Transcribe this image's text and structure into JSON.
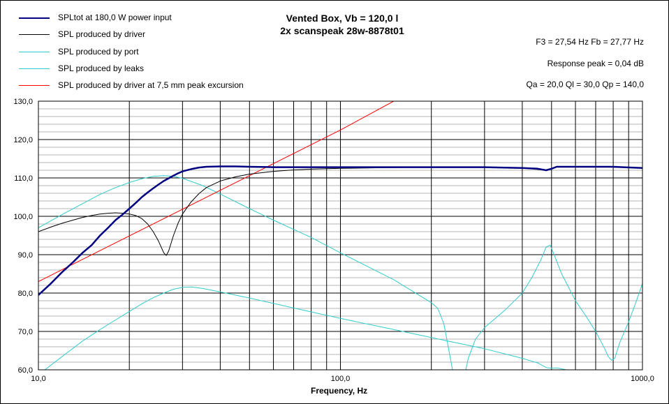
{
  "chart_data": {
    "type": "line",
    "title": "Vented Box, Vb = 120,0 l",
    "subtitle": "2x scanspeak 28w-8878t01",
    "xlabel": "Frequency, Hz",
    "ylabel": "",
    "x_scale": "log",
    "xlim": [
      10,
      1000
    ],
    "ylim": [
      60,
      130
    ],
    "x_tick_labels": [
      "10,0",
      "100,0",
      "1000,0"
    ],
    "y_tick_labels": [
      "60,0",
      "70,0",
      "80,0",
      "90,0",
      "100,0",
      "110,0",
      "120,0",
      "130,0"
    ],
    "y_ticks": [
      60,
      70,
      80,
      90,
      100,
      110,
      120,
      130
    ],
    "grid": true,
    "legend_position": "top-left",
    "annotations": [
      "F3 = 27,54  Hz   Fb = 27,77  Hz",
      "Response peak = 0,04 dB",
      "Qa = 20,0   Ql = 30,0   Qp = 140,0"
    ],
    "series": [
      {
        "name": "SPLtot at 180,0 W power input",
        "color": "#000080",
        "points": [
          [
            10,
            79.5
          ],
          [
            11,
            82.5
          ],
          [
            12,
            85.5
          ],
          [
            13,
            88
          ],
          [
            14,
            90.5
          ],
          [
            15,
            92.5
          ],
          [
            16,
            95
          ],
          [
            17,
            97
          ],
          [
            18,
            99
          ],
          [
            19,
            100.5
          ],
          [
            20,
            102
          ],
          [
            21,
            103.5
          ],
          [
            22,
            105
          ],
          [
            23,
            106.2
          ],
          [
            24,
            107.3
          ],
          [
            25,
            108.3
          ],
          [
            26,
            109.2
          ],
          [
            27,
            109.9
          ],
          [
            28,
            110.6
          ],
          [
            29,
            111.2
          ],
          [
            30,
            111.7
          ],
          [
            32,
            112.3
          ],
          [
            34,
            112.7
          ],
          [
            36,
            112.9
          ],
          [
            40,
            113
          ],
          [
            45,
            113
          ],
          [
            50,
            112.9
          ],
          [
            60,
            112.8
          ],
          [
            80,
            112.8
          ],
          [
            100,
            112.8
          ],
          [
            200,
            112.8
          ],
          [
            300,
            112.8
          ],
          [
            400,
            112.6
          ],
          [
            450,
            112.4
          ],
          [
            480,
            112
          ],
          [
            500,
            112.4
          ],
          [
            520,
            112.9
          ],
          [
            600,
            112.9
          ],
          [
            800,
            112.9
          ],
          [
            1000,
            112.6
          ]
        ]
      },
      {
        "name": "SPL produced by driver",
        "color": "#000000",
        "points": [
          [
            10,
            96
          ],
          [
            11,
            97.2
          ],
          [
            12,
            98.2
          ],
          [
            13,
            99
          ],
          [
            14,
            99.7
          ],
          [
            15,
            100.2
          ],
          [
            16,
            100.6
          ],
          [
            17,
            100.8
          ],
          [
            18,
            100.9
          ],
          [
            19,
            100.8
          ],
          [
            20,
            100.6
          ],
          [
            21,
            100.2
          ],
          [
            22,
            99.4
          ],
          [
            23,
            98
          ],
          [
            24,
            96
          ],
          [
            25,
            93.5
          ],
          [
            26,
            90.5
          ],
          [
            26.5,
            89.8
          ],
          [
            27,
            91
          ],
          [
            28,
            95
          ],
          [
            29,
            98.2
          ],
          [
            30,
            100.6
          ],
          [
            32,
            103.7
          ],
          [
            34,
            105.9
          ],
          [
            36,
            107.5
          ],
          [
            40,
            109.2
          ],
          [
            45,
            110.3
          ],
          [
            50,
            111
          ],
          [
            60,
            111.7
          ],
          [
            70,
            112.1
          ],
          [
            80,
            112.3
          ],
          [
            100,
            112.5
          ],
          [
            150,
            112.7
          ],
          [
            200,
            112.8
          ],
          [
            300,
            112.8
          ],
          [
            400,
            112.6
          ],
          [
            480,
            112
          ],
          [
            520,
            112.9
          ],
          [
            700,
            112.9
          ],
          [
            1000,
            112.6
          ]
        ]
      },
      {
        "name": "SPL produced by port",
        "color": "#33cccc",
        "points": [
          [
            10,
            97
          ],
          [
            12,
            100.5
          ],
          [
            14,
            103.3
          ],
          [
            16,
            105.7
          ],
          [
            18,
            107.5
          ],
          [
            20,
            108.8
          ],
          [
            22,
            109.8
          ],
          [
            24,
            110.4
          ],
          [
            26,
            110.6
          ],
          [
            28,
            110.4
          ],
          [
            30,
            109.9
          ],
          [
            35,
            108
          ],
          [
            40,
            105.8
          ],
          [
            50,
            102
          ],
          [
            60,
            99
          ],
          [
            80,
            94.5
          ],
          [
            100,
            90.5
          ],
          [
            150,
            83.5
          ],
          [
            200,
            77.5
          ],
          [
            210,
            76
          ],
          [
            220,
            72
          ],
          [
            230,
            64
          ],
          [
            235,
            60
          ]
        ]
      },
      {
        "name": "SPL produced by leaks",
        "color": "#33cccc",
        "points": [
          [
            10.5,
            60
          ],
          [
            12,
            63.5
          ],
          [
            14,
            67.5
          ],
          [
            16,
            70.5
          ],
          [
            18,
            73
          ],
          [
            20,
            75.2
          ],
          [
            22,
            77.2
          ],
          [
            24,
            78.8
          ],
          [
            26,
            80
          ],
          [
            28,
            81
          ],
          [
            30,
            81.5
          ],
          [
            32,
            81.6
          ],
          [
            35,
            81.2
          ],
          [
            40,
            80.3
          ],
          [
            50,
            78.7
          ],
          [
            60,
            77.3
          ],
          [
            80,
            75.1
          ],
          [
            100,
            73.4
          ],
          [
            150,
            70.5
          ],
          [
            200,
            68.4
          ],
          [
            300,
            65.5
          ],
          [
            400,
            63
          ],
          [
            450,
            61.8
          ],
          [
            480,
            60.6
          ],
          [
            500,
            60.4
          ],
          [
            520,
            60.5
          ],
          [
            560,
            60
          ],
          [
            600,
            59.8
          ]
        ]
      },
      {
        "name": "SPL produced by driver at 7,5 mm peak excursion",
        "color": "#ff0000",
        "points": [
          [
            10,
            83
          ],
          [
            100,
            122.5
          ],
          [
            150,
            130
          ]
        ]
      },
      {
        "name": "",
        "color": "#33cccc",
        "points": [
          [
            260,
            60
          ],
          [
            265,
            63
          ],
          [
            280,
            68
          ],
          [
            300,
            71
          ],
          [
            350,
            75.5
          ],
          [
            400,
            80
          ],
          [
            430,
            84
          ],
          [
            460,
            88.5
          ],
          [
            480,
            92
          ],
          [
            495,
            92.5
          ],
          [
            510,
            90
          ],
          [
            540,
            85
          ],
          [
            600,
            78
          ],
          [
            650,
            74
          ],
          [
            700,
            70
          ],
          [
            750,
            65.5
          ],
          [
            770,
            63.5
          ],
          [
            790,
            62.5
          ],
          [
            810,
            63
          ],
          [
            840,
            67
          ],
          [
            900,
            72.5
          ],
          [
            950,
            77.5
          ],
          [
            1000,
            82.5
          ]
        ]
      }
    ]
  },
  "legend": [
    {
      "label": "SPLtot at 180,0 W power input",
      "color": "#000080",
      "width": 2.5
    },
    {
      "label": "SPL produced by driver",
      "color": "#000000",
      "width": 1
    },
    {
      "label": "SPL produced by port",
      "color": "#33cccc",
      "width": 1
    },
    {
      "label": "SPL produced by leaks",
      "color": "#33cccc",
      "width": 1
    },
    {
      "label": "SPL produced by driver at 7,5 mm peak excursion",
      "color": "#ff0000",
      "width": 1
    }
  ],
  "info": {
    "line1": "F3 = 27,54  Hz   Fb = 27,77  Hz",
    "line2": "Response peak = 0,04 dB",
    "line3": "Qa = 20,0   Ql = 30,0   Qp = 140,0"
  }
}
